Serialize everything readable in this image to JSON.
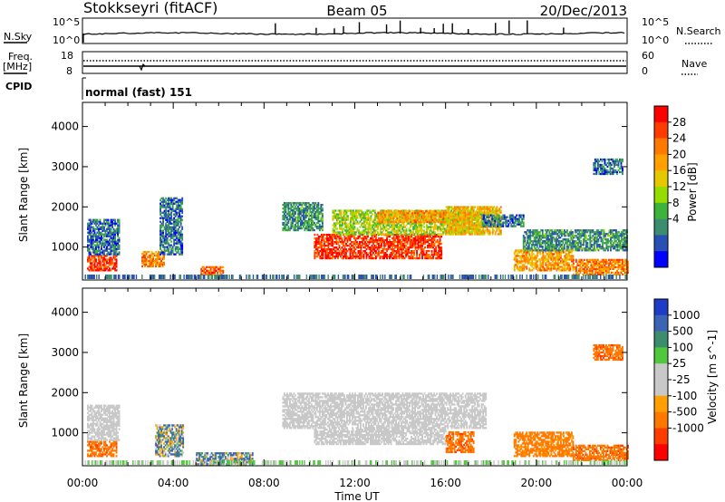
{
  "header": {
    "station": "Stokkseyri (fitACF)",
    "beam": "Beam 05",
    "date": "20/Dec/2013"
  },
  "top_panels": {
    "nsky_label": "N.Sky",
    "nsky_ticks": [
      "10^5",
      "10^0"
    ],
    "nsearch_label": "N.Search",
    "nsearch_ticks": [
      "10^5",
      "10^0"
    ],
    "freq_label": "Freq.",
    "freq_unit": "[MHz]",
    "freq_ticks": [
      "18",
      "8"
    ],
    "nave_label": "Nave",
    "nave_ticks": [
      "60",
      "0"
    ],
    "cpid_label": "CPID",
    "cpid_value": "normal (fast) 151"
  },
  "x_axis": {
    "label": "Time UT",
    "ticks": [
      "00:00",
      "04:00",
      "08:00",
      "12:00",
      "16:00",
      "20:00",
      "00:00"
    ]
  },
  "power_colorbar": {
    "label": "Power [dB]",
    "ticks": [
      "28",
      "24",
      "20",
      "16",
      "12",
      "8",
      "4"
    ],
    "colors": [
      "#ff0000",
      "#ff3c00",
      "#ff7800",
      "#ffa000",
      "#e6c800",
      "#96dc00",
      "#3cb43c",
      "#3c8c6e",
      "#2850b4",
      "#0000ff"
    ]
  },
  "velocity_colorbar": {
    "label": "Velocity [m s^-1]",
    "ticks": [
      "1000",
      "500",
      "100",
      "25",
      "-25",
      "-100",
      "-500",
      "-1000"
    ],
    "colors": [
      "#1e3cc8",
      "#3c64b4",
      "#3c8c6e",
      "#50c83c",
      "#c8c8c8",
      "#c8c8c8",
      "#ffa000",
      "#ff7800",
      "#ff3c00",
      "#ff0000"
    ]
  },
  "chart_data": [
    {
      "type": "heatmap",
      "title": "Power",
      "ylabel": "Slant Range [km]",
      "xlabel": "",
      "yticks": [
        "1000",
        "2000",
        "3000",
        "4000"
      ],
      "xlim_hours": [
        0,
        24
      ],
      "ylim_km": [
        180,
        4600
      ],
      "colorbar": "Power [dB]",
      "regions": [
        {
          "t": [
            0.2,
            1.5
          ],
          "r": [
            400,
            800
          ],
          "value_db": 26
        },
        {
          "t": [
            0.2,
            1.6
          ],
          "r": [
            800,
            1700
          ],
          "value_db": 6
        },
        {
          "t": [
            2.6,
            3.6
          ],
          "r": [
            500,
            900
          ],
          "value_db": 22
        },
        {
          "t": [
            3.4,
            4.4
          ],
          "r": [
            800,
            2200
          ],
          "value_db": 6
        },
        {
          "t": [
            5.2,
            6.2
          ],
          "r": [
            300,
            500
          ],
          "value_db": 24
        },
        {
          "t": [
            8.8,
            10.6
          ],
          "r": [
            1400,
            2100
          ],
          "value_db": 8
        },
        {
          "t": [
            10.2,
            15.8
          ],
          "r": [
            700,
            1300
          ],
          "value_db": 26
        },
        {
          "t": [
            11.0,
            17.6
          ],
          "r": [
            1300,
            1900
          ],
          "value_db": 14
        },
        {
          "t": [
            13.0,
            16.0
          ],
          "r": [
            1600,
            1900
          ],
          "value_db": 20
        },
        {
          "t": [
            16.0,
            18.4
          ],
          "r": [
            1300,
            2000
          ],
          "value_db": 18
        },
        {
          "t": [
            17.6,
            19.4
          ],
          "r": [
            1500,
            1800
          ],
          "value_db": 6
        },
        {
          "t": [
            19.0,
            21.6
          ],
          "r": [
            400,
            900
          ],
          "value_db": 20
        },
        {
          "t": [
            21.6,
            24.0
          ],
          "r": [
            300,
            700
          ],
          "value_db": 22
        },
        {
          "t": [
            19.4,
            24.0
          ],
          "r": [
            900,
            1400
          ],
          "value_db": 8
        },
        {
          "t": [
            22.5,
            23.8
          ],
          "r": [
            2800,
            3200
          ],
          "value_db": 6
        }
      ]
    },
    {
      "type": "heatmap",
      "title": "Velocity",
      "ylabel": "Slant Range [km]",
      "xlabel": "Time UT",
      "yticks": [
        "1000",
        "2000",
        "3000",
        "4000"
      ],
      "xlim_hours": [
        0,
        24
      ],
      "ylim_km": [
        180,
        4600
      ],
      "colorbar": "Velocity [m s^-1]",
      "regions": [
        {
          "t": [
            0.2,
            1.5
          ],
          "r": [
            400,
            800
          ],
          "value_ms": -300
        },
        {
          "t": [
            0.2,
            1.6
          ],
          "r": [
            800,
            1700
          ],
          "value_ms": 0
        },
        {
          "t": [
            3.2,
            4.4
          ],
          "r": [
            400,
            1200
          ],
          "value_ms": 60
        },
        {
          "t": [
            5.0,
            7.5
          ],
          "r": [
            200,
            500
          ],
          "value_ms": 80
        },
        {
          "t": [
            8.8,
            17.8
          ],
          "r": [
            1100,
            2000
          ],
          "value_ms": 0
        },
        {
          "t": [
            10.2,
            16.0
          ],
          "r": [
            700,
            1100
          ],
          "value_ms": 0
        },
        {
          "t": [
            16.0,
            17.2
          ],
          "r": [
            500,
            1000
          ],
          "value_ms": -300
        },
        {
          "t": [
            19.0,
            21.6
          ],
          "r": [
            400,
            1000
          ],
          "value_ms": -200
        },
        {
          "t": [
            21.6,
            24.0
          ],
          "r": [
            300,
            700
          ],
          "value_ms": -300
        },
        {
          "t": [
            22.5,
            23.8
          ],
          "r": [
            2800,
            3200
          ],
          "value_ms": -300
        }
      ]
    }
  ]
}
